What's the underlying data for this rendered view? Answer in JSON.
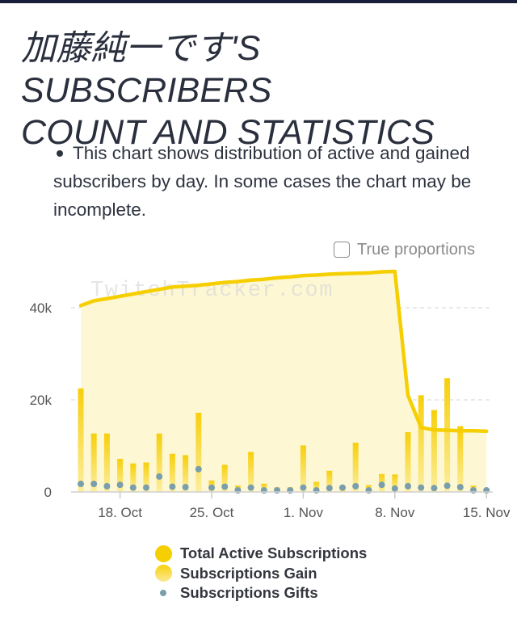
{
  "header": {
    "title_line1": "加藤純一です'S SUBSCRIBERS",
    "title_line2": "COUNT AND STATISTICS"
  },
  "description": "This chart shows distribution of active and gained subscribers by day. In some cases the chart may be incomplete.",
  "toggle": {
    "label": "True proportions",
    "checked": false
  },
  "watermark": "TwitchTracker.com",
  "colors": {
    "active_line": "#f6cf02",
    "active_fill": "#fdf6cf",
    "gain_bar": "#f8d31a",
    "gifts_dot": "#7b9eac",
    "grid": "#dddddd",
    "axis_text": "#555555"
  },
  "chart_data": {
    "type": "bar",
    "title": "",
    "xlabel": "",
    "ylabel": "",
    "ylim": [
      0,
      50000
    ],
    "y_ticks": [
      {
        "value": 0,
        "label": "0"
      },
      {
        "value": 20000,
        "label": "20k"
      },
      {
        "value": 40000,
        "label": "40k"
      }
    ],
    "x_ticks": [
      {
        "day_index": 3,
        "label": "18. Oct"
      },
      {
        "day_index": 10,
        "label": "25. Oct"
      },
      {
        "day_index": 17,
        "label": "1. Nov"
      },
      {
        "day_index": 24,
        "label": "8. Nov"
      },
      {
        "day_index": 31,
        "label": "15. Nov"
      }
    ],
    "x": [
      "Oct 15",
      "Oct 16",
      "Oct 17",
      "Oct 18",
      "Oct 19",
      "Oct 20",
      "Oct 21",
      "Oct 22",
      "Oct 23",
      "Oct 24",
      "Oct 25",
      "Oct 26",
      "Oct 27",
      "Oct 28",
      "Oct 29",
      "Oct 30",
      "Oct 31",
      "Nov 1",
      "Nov 2",
      "Nov 3",
      "Nov 4",
      "Nov 5",
      "Nov 6",
      "Nov 7",
      "Nov 8",
      "Nov 9",
      "Nov 10",
      "Nov 11",
      "Nov 12",
      "Nov 13",
      "Nov 14",
      "Nov 15"
    ],
    "legend_position": "bottom",
    "series": [
      {
        "name": "Total Active Subscriptions",
        "type": "area",
        "values": [
          40500,
          41500,
          42000,
          42500,
          43000,
          43500,
          44000,
          44500,
          44700,
          44900,
          45200,
          45500,
          45700,
          46000,
          46200,
          46500,
          46700,
          47000,
          47100,
          47300,
          47400,
          47500,
          47600,
          47800,
          47900,
          21000,
          14000,
          13500,
          13400,
          13300,
          13300,
          13200
        ]
      },
      {
        "name": "Subscriptions Gain",
        "type": "bar",
        "values": [
          22500,
          12700,
          12700,
          7200,
          6200,
          6400,
          12700,
          8300,
          8000,
          17200,
          2500,
          5900,
          1400,
          8700,
          1800,
          1000,
          1000,
          10100,
          2200,
          4600,
          1000,
          10700,
          1500,
          3900,
          3800,
          13000,
          21000,
          17800,
          24700,
          14300,
          1400,
          0
        ]
      },
      {
        "name": "Subscriptions Gifts",
        "type": "scatter",
        "values": [
          1400,
          1400,
          900,
          1200,
          600,
          600,
          3000,
          800,
          700,
          4600,
          600,
          800,
          0,
          600,
          0,
          0,
          0,
          600,
          0,
          500,
          600,
          900,
          0,
          1200,
          400,
          900,
          600,
          500,
          1000,
          700,
          0,
          0
        ]
      }
    ]
  }
}
